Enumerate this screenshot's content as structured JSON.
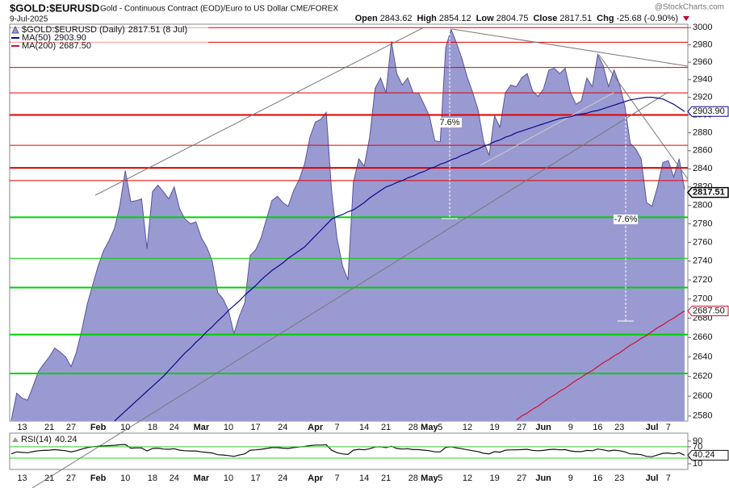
{
  "header": {
    "symbol": "$GOLD:$EURUSD",
    "description": "Gold - Continuous Contract (EOD)/Euro to US Dollar  CME/FOREX",
    "date": "9-Jul-2025",
    "watermark": "@StockCharts.com",
    "quote": [
      [
        "Open",
        "2843.62"
      ],
      [
        "High",
        "2854.12"
      ],
      [
        "Low",
        "2804.75"
      ],
      [
        "Close",
        "2817.51"
      ],
      [
        "Chg",
        "-25.68 (-0.90%)"
      ]
    ]
  },
  "chart_data": {
    "type": "area",
    "log_scale": true,
    "grid": false,
    "categories": [
      null,
      null,
      "13",
      null,
      null,
      null,
      null,
      "21",
      null,
      null,
      null,
      "27",
      null,
      null,
      null,
      null,
      "Feb",
      null,
      null,
      null,
      null,
      "10",
      null,
      null,
      null,
      null,
      "18",
      null,
      null,
      null,
      "24",
      null,
      null,
      null,
      null,
      "Mar",
      null,
      null,
      null,
      null,
      "10",
      null,
      null,
      null,
      null,
      "17",
      null,
      null,
      null,
      null,
      "24",
      null,
      null,
      null,
      null,
      null,
      "Apr",
      null,
      null,
      null,
      "7",
      null,
      null,
      null,
      null,
      "14",
      null,
      null,
      null,
      "21",
      null,
      null,
      null,
      null,
      "28",
      null,
      null,
      "May",
      null,
      "5",
      null,
      null,
      null,
      null,
      "12",
      null,
      null,
      null,
      null,
      "19",
      null,
      null,
      null,
      null,
      "27",
      null,
      null,
      null,
      "Jun",
      null,
      null,
      null,
      null,
      "9",
      null,
      null,
      null,
      null,
      "16",
      null,
      null,
      null,
      "23",
      null,
      null,
      null,
      null,
      null,
      "Jul",
      null,
      null,
      "7",
      null,
      null,
      null
    ],
    "ylim": [
      2575,
      3004
    ],
    "yticks": [
      2580,
      2600,
      2620,
      2640,
      2660,
      2680,
      2700,
      2720,
      2740,
      2760,
      2780,
      2800,
      2820,
      2840,
      2860,
      2880,
      2900,
      2920,
      2940,
      2960,
      2980,
      3000
    ],
    "y2lim": [
      -10,
      118
    ],
    "y2ticks": [
      10,
      30,
      70,
      90
    ],
    "y2_guides": [
      30,
      70
    ],
    "series": [
      {
        "name": "$GOLD:$EURUSD (Daily)",
        "kind": "area",
        "color": "#9a9ad2",
        "edge": "#55559a",
        "legend_value": "2817.51 (8 Jul)",
        "last_label": "2817.51",
        "values": [
          2576,
          2603,
          2598,
          2596,
          2610,
          2625,
          2633,
          2640,
          2649,
          2645,
          2640,
          2630,
          2645,
          2668,
          2695,
          2715,
          2735,
          2751,
          2762,
          2775,
          2800,
          2838,
          2804,
          2805,
          2807,
          2753,
          2815,
          2822,
          2815,
          2807,
          2820,
          2796,
          2785,
          2780,
          2782,
          2765,
          2755,
          2740,
          2707,
          2700,
          2688,
          2664,
          2682,
          2696,
          2746,
          2752,
          2765,
          2785,
          2805,
          2810,
          2803,
          2799,
          2816,
          2828,
          2845,
          2875,
          2892,
          2895,
          2903,
          2815,
          2764,
          2735,
          2720,
          2825,
          2851,
          2843,
          2875,
          2930,
          2942,
          2925,
          2984,
          2947,
          2934,
          2942,
          2925,
          2925,
          2912,
          2899,
          2871,
          2870,
          2977,
          2998,
          2982,
          2964,
          2942,
          2925,
          2905,
          2870,
          2855,
          2899,
          2886,
          2925,
          2934,
          2932,
          2942,
          2947,
          2927,
          2921,
          2929,
          2951,
          2953,
          2947,
          2953,
          2925,
          2912,
          2916,
          2942,
          2932,
          2969,
          2956,
          2932,
          2951,
          2935,
          2910,
          2868,
          2862,
          2851,
          2803,
          2799,
          2820,
          2847,
          2849,
          2831,
          2851,
          2817.51
        ]
      },
      {
        "name": "MA(50)",
        "kind": "line",
        "color": "#0a0a8c",
        "last_label": "2903.90",
        "values": [
          null,
          null,
          null,
          null,
          null,
          null,
          null,
          null,
          null,
          null,
          null,
          null,
          null,
          null,
          null,
          null,
          null,
          null,
          null,
          2575,
          2580,
          2585,
          2590,
          2595,
          2600,
          2605,
          2610,
          2615,
          2620,
          2626,
          2632,
          2638,
          2644,
          2649,
          2655,
          2660,
          2666,
          2671,
          2677,
          2682,
          2688,
          2693,
          2698,
          2704,
          2709,
          2714,
          2720,
          2725,
          2730,
          2734,
          2738,
          2743,
          2747,
          2751,
          2755,
          2761,
          2767,
          2773,
          2779,
          2785,
          2788,
          2790,
          2793,
          2795,
          2799,
          2803,
          2808,
          2812,
          2816,
          2820,
          2822,
          2825,
          2827,
          2830,
          2832,
          2835,
          2837,
          2840,
          2842,
          2845,
          2847,
          2850,
          2852,
          2855,
          2857,
          2860,
          2862,
          2865,
          2867,
          2870,
          2872,
          2875,
          2877,
          2880,
          2882,
          2884,
          2886,
          2888,
          2890,
          2892,
          2894,
          2896,
          2897,
          2898,
          2900,
          2901,
          2902,
          2904,
          2905,
          2907,
          2909,
          2911,
          2913,
          2915,
          2917,
          2918,
          2919,
          2920,
          2920,
          2919,
          2918,
          2915,
          2912,
          2908,
          2903.9
        ]
      },
      {
        "name": "MA(200)",
        "kind": "line",
        "color": "#cc1133",
        "last_label": "2687.50",
        "values": [
          null,
          null,
          null,
          null,
          null,
          null,
          null,
          null,
          null,
          null,
          null,
          null,
          null,
          null,
          null,
          null,
          null,
          null,
          null,
          null,
          null,
          null,
          null,
          null,
          null,
          null,
          null,
          null,
          null,
          null,
          null,
          null,
          null,
          null,
          null,
          null,
          null,
          null,
          null,
          null,
          null,
          null,
          null,
          null,
          null,
          null,
          null,
          null,
          null,
          null,
          null,
          null,
          null,
          null,
          null,
          null,
          null,
          null,
          null,
          null,
          null,
          null,
          null,
          null,
          null,
          null,
          null,
          null,
          null,
          null,
          null,
          null,
          null,
          null,
          null,
          null,
          null,
          null,
          null,
          null,
          null,
          null,
          null,
          null,
          null,
          null,
          null,
          null,
          null,
          null,
          null,
          null,
          null,
          2576,
          2580,
          2583,
          2587,
          2590,
          2594,
          2598,
          2601,
          2605,
          2608,
          2612,
          2616,
          2619,
          2623,
          2626,
          2630,
          2634,
          2637,
          2641,
          2644,
          2648,
          2652,
          2655,
          2659,
          2662,
          2666,
          2670,
          2673,
          2677,
          2680,
          2684,
          2687.5
        ]
      },
      {
        "name": "RSI(14)",
        "kind": "line",
        "axis": "y2",
        "color": "#111111",
        "last_label": "40.24",
        "values": [
          45,
          52,
          50,
          49,
          53,
          56,
          57,
          58,
          60,
          58,
          56,
          52,
          56,
          62,
          67,
          70,
          72,
          73,
          74,
          75,
          77,
          78,
          65,
          66,
          66,
          55,
          64,
          65,
          62,
          61,
          63,
          58,
          56,
          55,
          55,
          52,
          50,
          48,
          42,
          41,
          39,
          36,
          41,
          45,
          58,
          59,
          61,
          64,
          67,
          67,
          65,
          64,
          67,
          69,
          71,
          74,
          76,
          76,
          77,
          58,
          49,
          45,
          43,
          58,
          61,
          59,
          63,
          69,
          70,
          67,
          72,
          64,
          62,
          63,
          60,
          60,
          58,
          56,
          52,
          52,
          68,
          70,
          66,
          63,
          59,
          56,
          53,
          47,
          45,
          53,
          51,
          58,
          59,
          59,
          60,
          61,
          57,
          56,
          57,
          60,
          61,
          59,
          60,
          55,
          53,
          53,
          57,
          56,
          62,
          59,
          55,
          58,
          56,
          52,
          45,
          44,
          42,
          36,
          35,
          41,
          47,
          48,
          45,
          49,
          40.24
        ]
      }
    ],
    "levels": [
      {
        "value": 3000,
        "color": "#e00000",
        "width": 1
      },
      {
        "value": 2983,
        "color": "#e00000",
        "width": 1
      },
      {
        "value": 2954,
        "color": "#e00000",
        "width": 1
      },
      {
        "value": 2925,
        "color": "#e00000",
        "width": 1
      },
      {
        "value": 2900,
        "color": "#e00000",
        "width": 2
      },
      {
        "value": 2866,
        "color": "#e00000",
        "width": 1
      },
      {
        "value": 2841,
        "color": "#e00000",
        "width": 2
      },
      {
        "value": 2827,
        "color": "#e00000",
        "width": 1
      },
      {
        "value": 2787,
        "color": "#00d000",
        "width": 2
      },
      {
        "value": 2743,
        "color": "#00d000",
        "width": 1
      },
      {
        "value": 2712,
        "color": "#00d000",
        "width": 2
      },
      {
        "value": 2663,
        "color": "#00d000",
        "width": 2
      },
      {
        "value": 2623,
        "color": "#00d000",
        "width": 2
      }
    ],
    "annotations": [
      "7.6%",
      "-7.6%"
    ]
  }
}
